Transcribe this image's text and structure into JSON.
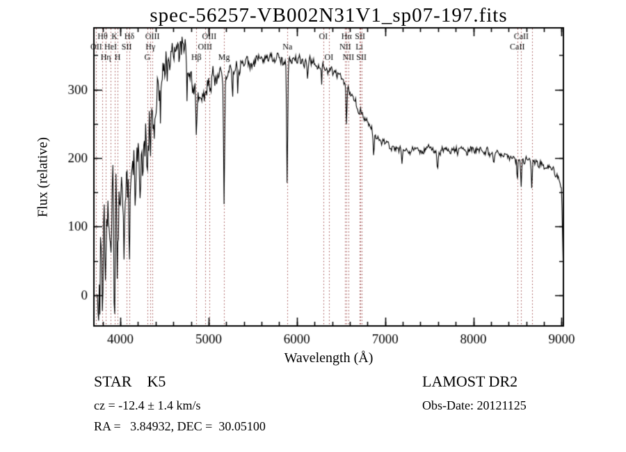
{
  "title": "spec-56257-VB002N31V1_sp07-197.fits",
  "footer": {
    "class_line": "STAR    K5",
    "survey": "LAMOST DR2",
    "cz_line": "cz = -12.4 ± 1.4 km/s",
    "obs_date_line": "Obs-Date: 20121125",
    "radec_line": "RA =   3.84932, DEC =  30.05100"
  },
  "chart_data": {
    "type": "line",
    "title": "spec-56257-VB002N31V1_sp07-197.fits",
    "xlabel": "Wavelength (Å)",
    "ylabel": "Flux (relative)",
    "xlim": [
      3700,
      9020
    ],
    "ylim": [
      -45,
      390
    ],
    "xticks": [
      4000,
      5000,
      6000,
      7000,
      8000,
      9000
    ],
    "yticks": [
      0,
      100,
      200,
      300
    ],
    "x_minor_step": 200,
    "y_minor_step": 50,
    "grid": false,
    "legend": "none",
    "colors": {
      "spectrum": "#000000",
      "line_markers": "#9a4040",
      "axes": "#000000",
      "labels": "#000000",
      "background": "#ffffff"
    },
    "spectral_lines": [
      {
        "wavelength": 3727,
        "label": "OII",
        "row": 1
      },
      {
        "wavelength": 3798,
        "label": "Hθ",
        "row": 0
      },
      {
        "wavelength": 3835,
        "label": "Hη",
        "row": 2
      },
      {
        "wavelength": 3889,
        "label": "HeI",
        "row": 1
      },
      {
        "wavelength": 3933,
        "label": "K",
        "row": 0
      },
      {
        "wavelength": 3968,
        "label": "H",
        "row": 2
      },
      {
        "wavelength": 4072,
        "label": "SII",
        "row": 1
      },
      {
        "wavelength": 4102,
        "label": "Hδ",
        "row": 0
      },
      {
        "wavelength": 4305,
        "label": "G",
        "row": 2
      },
      {
        "wavelength": 4340,
        "label": "Hγ",
        "row": 1
      },
      {
        "wavelength": 4363,
        "label": "OIII",
        "row": 0
      },
      {
        "wavelength": 4861,
        "label": "Hβ",
        "row": 2
      },
      {
        "wavelength": 4959,
        "label": "OIII",
        "row": 1
      },
      {
        "wavelength": 5007,
        "label": "OIII",
        "row": 0
      },
      {
        "wavelength": 5175,
        "label": "Mg",
        "row": 2
      },
      {
        "wavelength": 5893,
        "label": "Na",
        "row": 1
      },
      {
        "wavelength": 6300,
        "label": "OI",
        "row": 0
      },
      {
        "wavelength": 6363,
        "label": "OI",
        "row": 2
      },
      {
        "wavelength": 6548,
        "label": "NII",
        "row": 1
      },
      {
        "wavelength": 6563,
        "label": "Hα",
        "row": 0
      },
      {
        "wavelength": 6583,
        "label": "NII",
        "row": 2
      },
      {
        "wavelength": 6707,
        "label": "Li",
        "row": 1
      },
      {
        "wavelength": 6716,
        "label": "SII",
        "row": 0
      },
      {
        "wavelength": 6731,
        "label": "SII",
        "row": 2
      },
      {
        "wavelength": 8498,
        "label": "CaII",
        "row": 1
      },
      {
        "wavelength": 8542,
        "label": "CaII",
        "row": 0
      },
      {
        "wavelength": 8662,
        "label": "",
        "row": 2
      }
    ],
    "envelope": [
      [
        3740,
        60
      ],
      [
        3762,
        25
      ],
      [
        3785,
        75
      ],
      [
        3810,
        100
      ],
      [
        3840,
        110
      ],
      [
        3870,
        95
      ],
      [
        3900,
        120
      ],
      [
        3930,
        112
      ],
      [
        3960,
        128
      ],
      [
        3990,
        142
      ],
      [
        4020,
        150
      ],
      [
        4060,
        162
      ],
      [
        4100,
        170
      ],
      [
        4150,
        192
      ],
      [
        4200,
        205
      ],
      [
        4250,
        228
      ],
      [
        4300,
        235
      ],
      [
        4350,
        268
      ],
      [
        4400,
        292
      ],
      [
        4450,
        314
      ],
      [
        4500,
        330
      ],
      [
        4550,
        340
      ],
      [
        4600,
        355
      ],
      [
        4650,
        366
      ],
      [
        4690,
        370
      ],
      [
        4730,
        356
      ],
      [
        4770,
        336
      ],
      [
        4810,
        312
      ],
      [
        4850,
        296
      ],
      [
        4890,
        286
      ],
      [
        4930,
        290
      ],
      [
        4970,
        300
      ],
      [
        5010,
        310
      ],
      [
        5060,
        317
      ],
      [
        5120,
        318
      ],
      [
        5180,
        318
      ],
      [
        5240,
        324
      ],
      [
        5300,
        330
      ],
      [
        5380,
        336
      ],
      [
        5460,
        340
      ],
      [
        5550,
        343
      ],
      [
        5650,
        346
      ],
      [
        5750,
        344
      ],
      [
        5850,
        343
      ],
      [
        5950,
        340
      ],
      [
        6050,
        342
      ],
      [
        6150,
        338
      ],
      [
        6250,
        334
      ],
      [
        6350,
        330
      ],
      [
        6450,
        322
      ],
      [
        6520,
        314
      ],
      [
        6580,
        300
      ],
      [
        6640,
        286
      ],
      [
        6700,
        272
      ],
      [
        6760,
        258
      ],
      [
        6820,
        246
      ],
      [
        6880,
        236
      ],
      [
        6940,
        228
      ],
      [
        7000,
        222
      ],
      [
        7060,
        218
      ],
      [
        7130,
        214
      ],
      [
        7220,
        212
      ],
      [
        7320,
        214
      ],
      [
        7420,
        211
      ],
      [
        7520,
        214
      ],
      [
        7620,
        210
      ],
      [
        7720,
        213
      ],
      [
        7820,
        211
      ],
      [
        7920,
        209
      ],
      [
        8020,
        213
      ],
      [
        8120,
        209
      ],
      [
        8220,
        207
      ],
      [
        8320,
        204
      ],
      [
        8420,
        201
      ],
      [
        8520,
        198
      ],
      [
        8620,
        196
      ],
      [
        8720,
        192
      ],
      [
        8820,
        188
      ],
      [
        8900,
        182
      ],
      [
        8960,
        174
      ],
      [
        9000,
        148
      ],
      [
        9010,
        95
      ],
      [
        9018,
        38
      ]
    ],
    "absorption_features": [
      [
        3750,
        60,
        5
      ],
      [
        3798,
        70,
        5
      ],
      [
        3835,
        80,
        5
      ],
      [
        3889,
        70,
        5
      ],
      [
        3933,
        120,
        6
      ],
      [
        3968,
        110,
        6
      ],
      [
        4045,
        55,
        5
      ],
      [
        4102,
        90,
        5
      ],
      [
        4172,
        50,
        5
      ],
      [
        4227,
        70,
        5
      ],
      [
        4305,
        55,
        7
      ],
      [
        4340,
        65,
        5
      ],
      [
        4384,
        50,
        5
      ],
      [
        4455,
        45,
        4
      ],
      [
        4530,
        40,
        4
      ],
      [
        4668,
        40,
        4
      ],
      [
        4755,
        45,
        4
      ],
      [
        4861,
        50,
        5
      ],
      [
        5175,
        185,
        6
      ],
      [
        5270,
        45,
        5
      ],
      [
        5330,
        35,
        4
      ],
      [
        5890,
        180,
        6
      ],
      [
        6122,
        25,
        4
      ],
      [
        6280,
        20,
        4
      ],
      [
        6563,
        55,
        5
      ],
      [
        6870,
        35,
        7
      ],
      [
        7190,
        20,
        5
      ],
      [
        7594,
        30,
        7
      ],
      [
        8230,
        18,
        5
      ],
      [
        8498,
        32,
        5
      ],
      [
        8542,
        42,
        5
      ],
      [
        8662,
        42,
        5
      ]
    ],
    "noise": {
      "seed": 9,
      "sample_step": 7,
      "amplitude": [
        [
          3740,
          90
        ],
        [
          3820,
          95
        ],
        [
          3900,
          88
        ],
        [
          4000,
          82
        ],
        [
          4100,
          72
        ],
        [
          4200,
          62
        ],
        [
          4300,
          52
        ],
        [
          4450,
          40
        ],
        [
          4600,
          30
        ],
        [
          4750,
          27
        ],
        [
          4900,
          22
        ],
        [
          5100,
          20
        ],
        [
          5300,
          17
        ],
        [
          5500,
          14
        ],
        [
          5700,
          13
        ],
        [
          5900,
          12
        ],
        [
          6100,
          11
        ],
        [
          6300,
          10
        ],
        [
          6500,
          9
        ],
        [
          6800,
          8
        ],
        [
          7200,
          8
        ],
        [
          7600,
          8
        ],
        [
          8000,
          8
        ],
        [
          8400,
          8
        ],
        [
          8800,
          9
        ],
        [
          9018,
          10
        ]
      ]
    }
  }
}
